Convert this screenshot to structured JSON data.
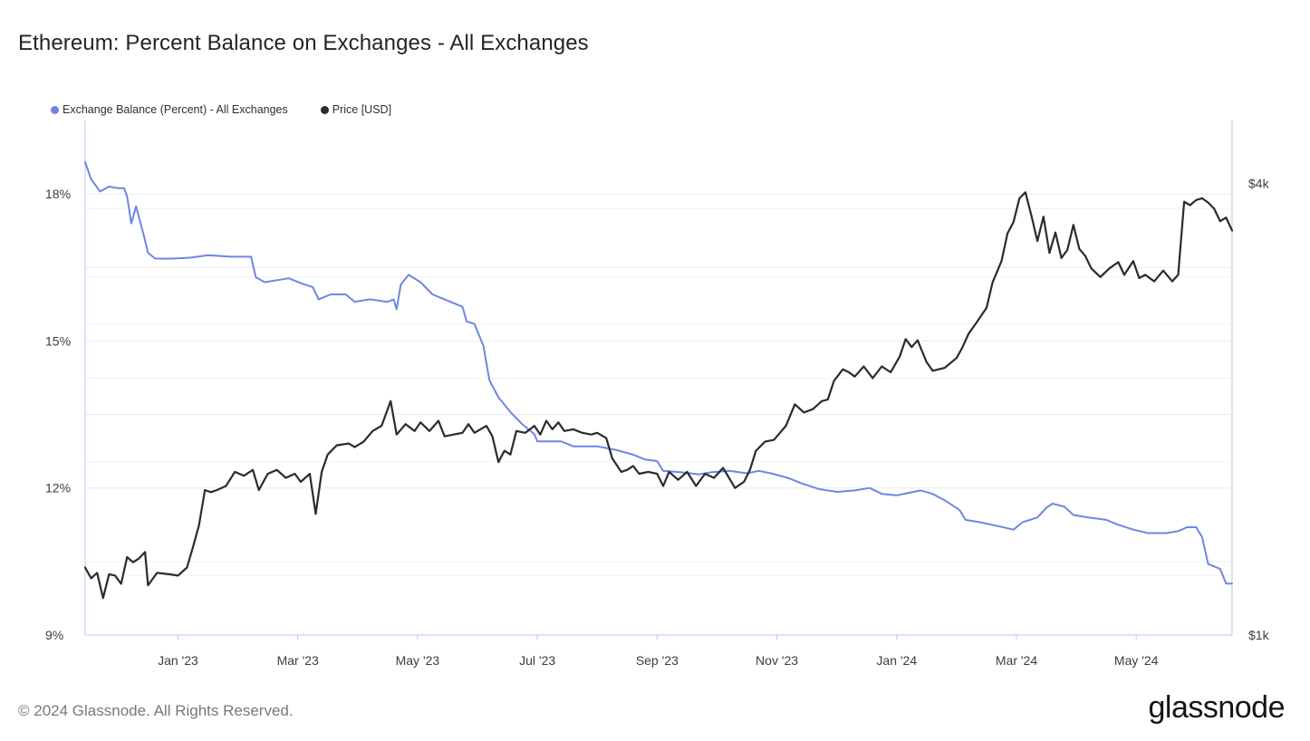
{
  "header": {
    "title": "Ethereum: Percent Balance on Exchanges - All Exchanges"
  },
  "footer": {
    "copyright": "© 2024 Glassnode. All Rights Reserved.",
    "brand": "glassnode"
  },
  "colors": {
    "balance": "#6f86e3",
    "price": "#2b2b2d",
    "grid": "#ececef",
    "axis": "#b9c4ee"
  },
  "chart_data": {
    "type": "line",
    "title": "Ethereum: Percent Balance on Exchanges - All Exchanges",
    "legend": [
      "Exchange Balance (Percent) - All Exchanges",
      "Price [USD]"
    ],
    "legend_position": "top-left",
    "x_ticks": [
      "Jan '23",
      "Mar '23",
      "May '23",
      "Jul '23",
      "Sep '23",
      "Nov '23",
      "Jan '24",
      "Mar '24",
      "May '24"
    ],
    "x_tick_months": [
      2.0,
      4.0,
      6.0,
      8.0,
      10.0,
      12.0,
      14.0,
      16.0,
      18.0
    ],
    "x_range_months": [
      0.45,
      19.6
    ],
    "y_left": {
      "label": "",
      "ticks": [
        "9%",
        "12%",
        "15%",
        "18%"
      ],
      "tick_values": [
        9,
        12,
        15,
        18
      ],
      "range": [
        9,
        19.5
      ],
      "unit": "%"
    },
    "y_right": {
      "label": "",
      "ticks": [
        "$1k",
        "$4k"
      ],
      "tick_values": [
        1000,
        4000
      ],
      "scale": "log",
      "range": [
        1000,
        4850
      ]
    },
    "grid": true,
    "series": [
      {
        "name": "Exchange Balance (Percent) - All Exchanges",
        "axis": "left",
        "color": "#6f86e3",
        "points": [
          [
            0.45,
            18.65
          ],
          [
            0.55,
            18.3
          ],
          [
            0.7,
            18.05
          ],
          [
            0.85,
            18.15
          ],
          [
            1.0,
            18.12
          ],
          [
            1.1,
            18.12
          ],
          [
            1.15,
            17.95
          ],
          [
            1.22,
            17.4
          ],
          [
            1.3,
            17.75
          ],
          [
            1.42,
            17.2
          ],
          [
            1.5,
            16.8
          ],
          [
            1.62,
            16.68
          ],
          [
            1.9,
            16.68
          ],
          [
            2.2,
            16.7
          ],
          [
            2.5,
            16.75
          ],
          [
            2.9,
            16.72
          ],
          [
            3.22,
            16.72
          ],
          [
            3.3,
            16.3
          ],
          [
            3.45,
            16.2
          ],
          [
            3.7,
            16.25
          ],
          [
            3.85,
            16.28
          ],
          [
            4.05,
            16.18
          ],
          [
            4.25,
            16.1
          ],
          [
            4.35,
            15.85
          ],
          [
            4.55,
            15.95
          ],
          [
            4.8,
            15.95
          ],
          [
            4.95,
            15.8
          ],
          [
            5.2,
            15.85
          ],
          [
            5.5,
            15.8
          ],
          [
            5.6,
            15.85
          ],
          [
            5.65,
            15.65
          ],
          [
            5.72,
            16.15
          ],
          [
            5.85,
            16.35
          ],
          [
            6.05,
            16.2
          ],
          [
            6.25,
            15.95
          ],
          [
            6.55,
            15.8
          ],
          [
            6.75,
            15.7
          ],
          [
            6.82,
            15.4
          ],
          [
            6.95,
            15.35
          ],
          [
            7.1,
            14.9
          ],
          [
            7.2,
            14.2
          ],
          [
            7.35,
            13.85
          ],
          [
            7.55,
            13.55
          ],
          [
            7.75,
            13.3
          ],
          [
            7.95,
            13.1
          ],
          [
            8.0,
            12.95
          ],
          [
            8.4,
            12.95
          ],
          [
            8.6,
            12.85
          ],
          [
            9.0,
            12.85
          ],
          [
            9.3,
            12.78
          ],
          [
            9.6,
            12.68
          ],
          [
            9.8,
            12.58
          ],
          [
            10.0,
            12.55
          ],
          [
            10.1,
            12.35
          ],
          [
            10.4,
            12.32
          ],
          [
            10.7,
            12.28
          ],
          [
            10.9,
            12.32
          ],
          [
            11.2,
            12.35
          ],
          [
            11.5,
            12.3
          ],
          [
            11.7,
            12.35
          ],
          [
            11.9,
            12.3
          ],
          [
            12.2,
            12.2
          ],
          [
            12.4,
            12.1
          ],
          [
            12.7,
            11.98
          ],
          [
            13.0,
            11.92
          ],
          [
            13.3,
            11.95
          ],
          [
            13.55,
            12.0
          ],
          [
            13.75,
            11.88
          ],
          [
            14.0,
            11.85
          ],
          [
            14.2,
            11.9
          ],
          [
            14.4,
            11.95
          ],
          [
            14.6,
            11.88
          ],
          [
            14.8,
            11.75
          ],
          [
            15.05,
            11.55
          ],
          [
            15.15,
            11.35
          ],
          [
            15.4,
            11.3
          ],
          [
            15.7,
            11.22
          ],
          [
            15.95,
            11.15
          ],
          [
            16.1,
            11.3
          ],
          [
            16.35,
            11.4
          ],
          [
            16.5,
            11.6
          ],
          [
            16.6,
            11.68
          ],
          [
            16.8,
            11.62
          ],
          [
            16.95,
            11.45
          ],
          [
            17.2,
            11.4
          ],
          [
            17.5,
            11.35
          ],
          [
            17.7,
            11.25
          ],
          [
            17.95,
            11.15
          ],
          [
            18.2,
            11.08
          ],
          [
            18.5,
            11.08
          ],
          [
            18.7,
            11.12
          ],
          [
            18.85,
            11.2
          ],
          [
            19.0,
            11.2
          ],
          [
            19.1,
            11.0
          ],
          [
            19.2,
            10.45
          ],
          [
            19.4,
            10.35
          ],
          [
            19.5,
            10.05
          ],
          [
            19.6,
            10.05
          ]
        ]
      },
      {
        "name": "Price [USD]",
        "axis": "right",
        "color": "#2b2b2d",
        "points": [
          [
            0.45,
            1230
          ],
          [
            0.55,
            1190
          ],
          [
            0.65,
            1210
          ],
          [
            0.75,
            1120
          ],
          [
            0.85,
            1205
          ],
          [
            0.95,
            1200
          ],
          [
            1.05,
            1170
          ],
          [
            1.15,
            1270
          ],
          [
            1.25,
            1250
          ],
          [
            1.35,
            1265
          ],
          [
            1.45,
            1290
          ],
          [
            1.5,
            1165
          ],
          [
            1.65,
            1210
          ],
          [
            1.85,
            1205
          ],
          [
            2.0,
            1200
          ],
          [
            2.15,
            1230
          ],
          [
            2.25,
            1310
          ],
          [
            2.35,
            1400
          ],
          [
            2.45,
            1560
          ],
          [
            2.55,
            1550
          ],
          [
            2.65,
            1560
          ],
          [
            2.8,
            1580
          ],
          [
            2.95,
            1650
          ],
          [
            3.1,
            1630
          ],
          [
            3.25,
            1660
          ],
          [
            3.35,
            1560
          ],
          [
            3.5,
            1640
          ],
          [
            3.65,
            1660
          ],
          [
            3.8,
            1620
          ],
          [
            3.95,
            1640
          ],
          [
            4.05,
            1600
          ],
          [
            4.2,
            1640
          ],
          [
            4.3,
            1450
          ],
          [
            4.4,
            1650
          ],
          [
            4.5,
            1740
          ],
          [
            4.65,
            1790
          ],
          [
            4.85,
            1800
          ],
          [
            4.95,
            1780
          ],
          [
            5.1,
            1810
          ],
          [
            5.25,
            1870
          ],
          [
            5.4,
            1900
          ],
          [
            5.55,
            2050
          ],
          [
            5.65,
            1850
          ],
          [
            5.8,
            1910
          ],
          [
            5.95,
            1870
          ],
          [
            6.05,
            1920
          ],
          [
            6.2,
            1870
          ],
          [
            6.35,
            1930
          ],
          [
            6.45,
            1840
          ],
          [
            6.6,
            1850
          ],
          [
            6.75,
            1860
          ],
          [
            6.85,
            1910
          ],
          [
            6.95,
            1860
          ],
          [
            7.05,
            1880
          ],
          [
            7.15,
            1900
          ],
          [
            7.25,
            1840
          ],
          [
            7.35,
            1700
          ],
          [
            7.45,
            1760
          ],
          [
            7.55,
            1740
          ],
          [
            7.65,
            1870
          ],
          [
            7.8,
            1860
          ],
          [
            7.95,
            1900
          ],
          [
            8.05,
            1850
          ],
          [
            8.15,
            1930
          ],
          [
            8.25,
            1880
          ],
          [
            8.35,
            1920
          ],
          [
            8.45,
            1870
          ],
          [
            8.6,
            1880
          ],
          [
            8.75,
            1860
          ],
          [
            8.9,
            1850
          ],
          [
            9.0,
            1860
          ],
          [
            9.15,
            1830
          ],
          [
            9.25,
            1720
          ],
          [
            9.4,
            1650
          ],
          [
            9.5,
            1660
          ],
          [
            9.6,
            1680
          ],
          [
            9.7,
            1640
          ],
          [
            9.85,
            1650
          ],
          [
            10.0,
            1640
          ],
          [
            10.1,
            1580
          ],
          [
            10.2,
            1650
          ],
          [
            10.35,
            1610
          ],
          [
            10.5,
            1650
          ],
          [
            10.65,
            1580
          ],
          [
            10.8,
            1640
          ],
          [
            10.95,
            1620
          ],
          [
            11.1,
            1670
          ],
          [
            11.2,
            1620
          ],
          [
            11.3,
            1570
          ],
          [
            11.45,
            1600
          ],
          [
            11.55,
            1660
          ],
          [
            11.65,
            1760
          ],
          [
            11.8,
            1810
          ],
          [
            11.95,
            1820
          ],
          [
            12.05,
            1860
          ],
          [
            12.15,
            1900
          ],
          [
            12.3,
            2030
          ],
          [
            12.45,
            1980
          ],
          [
            12.6,
            2000
          ],
          [
            12.75,
            2050
          ],
          [
            12.85,
            2060
          ],
          [
            12.95,
            2180
          ],
          [
            13.1,
            2260
          ],
          [
            13.2,
            2240
          ],
          [
            13.3,
            2210
          ],
          [
            13.45,
            2280
          ],
          [
            13.6,
            2200
          ],
          [
            13.75,
            2280
          ],
          [
            13.9,
            2240
          ],
          [
            14.05,
            2350
          ],
          [
            14.15,
            2480
          ],
          [
            14.25,
            2420
          ],
          [
            14.35,
            2470
          ],
          [
            14.5,
            2310
          ],
          [
            14.6,
            2250
          ],
          [
            14.8,
            2270
          ],
          [
            15.0,
            2340
          ],
          [
            15.1,
            2420
          ],
          [
            15.2,
            2520
          ],
          [
            15.35,
            2620
          ],
          [
            15.5,
            2730
          ],
          [
            15.6,
            2950
          ],
          [
            15.75,
            3150
          ],
          [
            15.85,
            3430
          ],
          [
            15.95,
            3550
          ],
          [
            16.05,
            3820
          ],
          [
            16.15,
            3890
          ],
          [
            16.25,
            3620
          ],
          [
            16.35,
            3350
          ],
          [
            16.45,
            3610
          ],
          [
            16.55,
            3230
          ],
          [
            16.65,
            3440
          ],
          [
            16.75,
            3180
          ],
          [
            16.85,
            3260
          ],
          [
            16.95,
            3520
          ],
          [
            17.05,
            3270
          ],
          [
            17.15,
            3200
          ],
          [
            17.25,
            3080
          ],
          [
            17.4,
            3000
          ],
          [
            17.55,
            3080
          ],
          [
            17.7,
            3140
          ],
          [
            17.8,
            3020
          ],
          [
            17.95,
            3150
          ],
          [
            18.05,
            2990
          ],
          [
            18.15,
            3020
          ],
          [
            18.3,
            2960
          ],
          [
            18.45,
            3060
          ],
          [
            18.6,
            2960
          ],
          [
            18.7,
            3020
          ],
          [
            18.8,
            3780
          ],
          [
            18.9,
            3740
          ],
          [
            19.0,
            3800
          ],
          [
            19.1,
            3820
          ],
          [
            19.2,
            3770
          ],
          [
            19.3,
            3700
          ],
          [
            19.4,
            3560
          ],
          [
            19.5,
            3600
          ],
          [
            19.6,
            3460
          ]
        ]
      }
    ]
  }
}
